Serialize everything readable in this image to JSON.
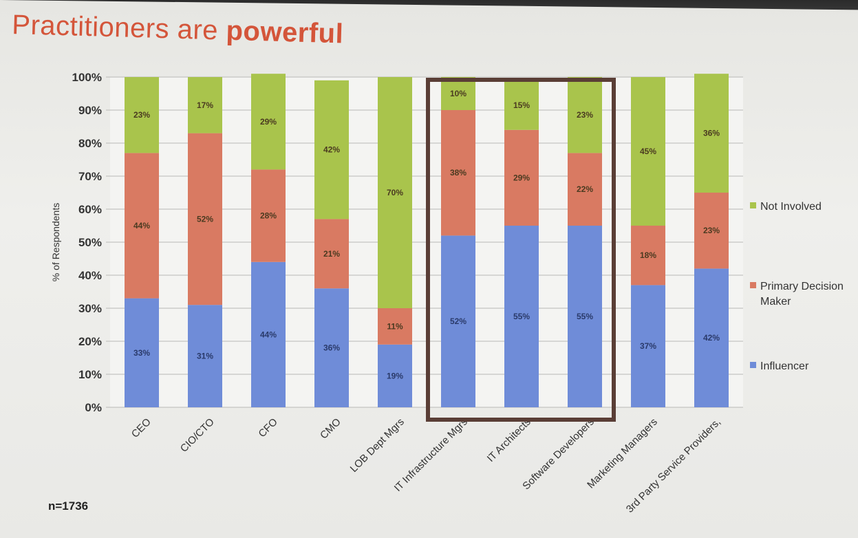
{
  "slide": {
    "title_normal": "Practitioners are ",
    "title_bold": "powerful",
    "note": "n=1736"
  },
  "colors": {
    "influencer": "#6f8cd8",
    "primary": "#d97a62",
    "not_involved": "#a9c44c",
    "highlight_box": "#5a3e36"
  },
  "chart_data": {
    "type": "bar",
    "stacked": true,
    "ylabel": "% of Respondents",
    "ylim": [
      0,
      100
    ],
    "yticks": [
      "0%",
      "10%",
      "20%",
      "30%",
      "40%",
      "50%",
      "60%",
      "70%",
      "80%",
      "90%",
      "100%"
    ],
    "grid": true,
    "legend_position": "right",
    "categories": [
      "CEO",
      "CIO/CTO",
      "CFO",
      "CMO",
      "LOB Dept Mgrs",
      "IT Infrastructure Mgrs",
      "IT Architects",
      "Software Developers",
      "Marketing Managers",
      "3rd Party Service Providers,"
    ],
    "series": [
      {
        "name": "Influencer",
        "values": [
          33,
          31,
          44,
          36,
          19,
          52,
          55,
          55,
          37,
          42
        ],
        "labels": [
          "33%",
          "31%",
          "44%",
          "36%",
          "19%",
          "52%",
          "55%",
          "55%",
          "37%",
          "42%"
        ]
      },
      {
        "name": "Primary Decision Maker",
        "values": [
          44,
          52,
          28,
          21,
          11,
          38,
          29,
          22,
          18,
          23
        ],
        "labels": [
          "44%",
          "52%",
          "28%",
          "21%",
          "11%",
          "38%",
          "29%",
          "22%",
          "18%",
          "23%"
        ]
      },
      {
        "name": "Not Involved",
        "values": [
          23,
          17,
          29,
          42,
          70,
          10,
          15,
          23,
          45,
          36
        ],
        "labels": [
          "23%",
          "17%",
          "29%",
          "42%",
          "70%",
          "10%",
          "15%",
          "23%",
          "45%",
          "36%"
        ]
      }
    ],
    "highlighted_categories": [
      "IT Infrastructure Mgrs",
      "IT Architects",
      "Software Developers"
    ]
  },
  "legend": {
    "items": [
      {
        "label_lines": [
          "Not Involved"
        ]
      },
      {
        "label_lines": [
          "Primary Decision",
          "Maker"
        ]
      },
      {
        "label_lines": [
          "Influencer"
        ]
      }
    ]
  }
}
